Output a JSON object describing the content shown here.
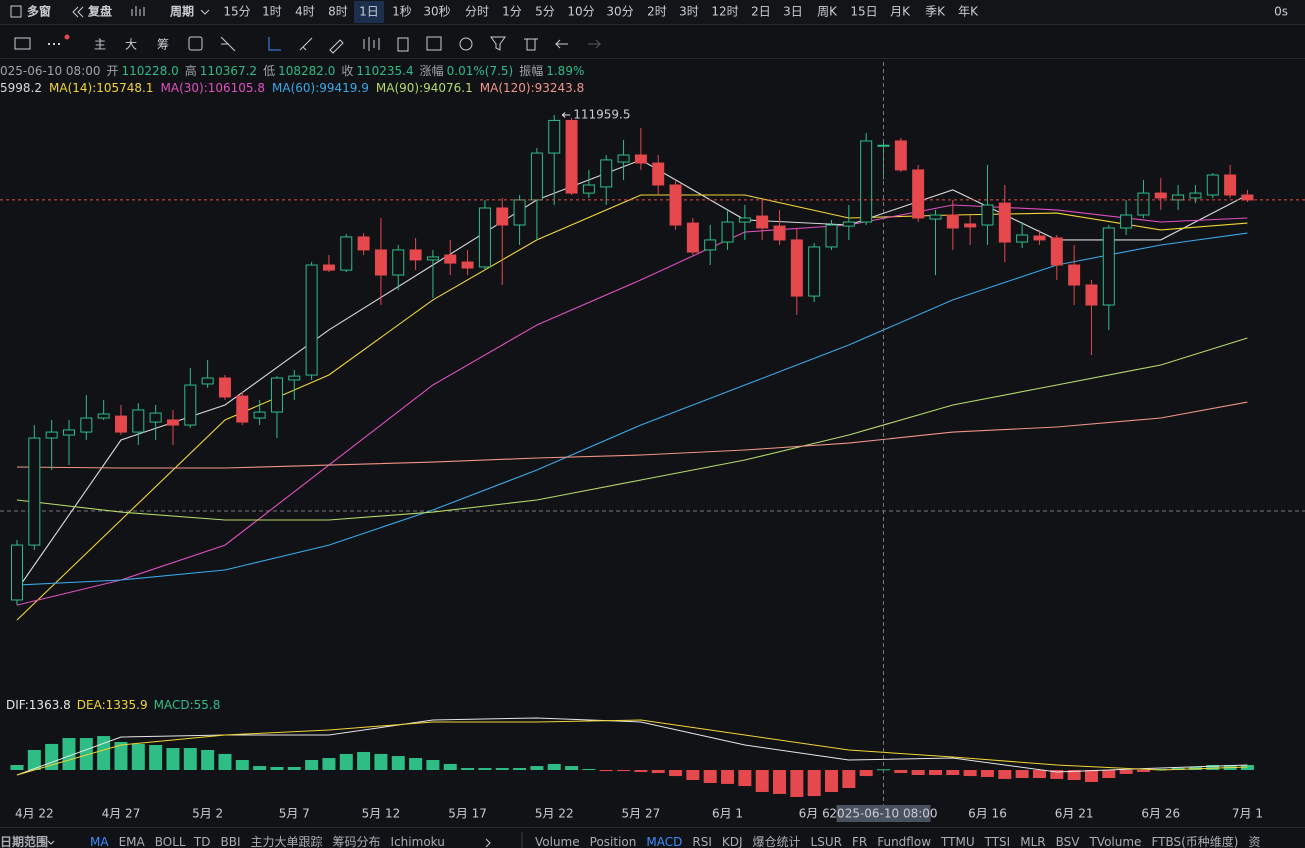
{
  "toolbar": {
    "left": [
      "多窗",
      "复盘",
      "周期"
    ],
    "periods": [
      "15分",
      "1时",
      "4时",
      "8时",
      "1日",
      "1秒",
      "30秒",
      "分时",
      "1分",
      "5分",
      "10分",
      "30分",
      "2时",
      "3时",
      "12时",
      "2日",
      "3日",
      "周K",
      "15日",
      "月K",
      "季K",
      "年K"
    ],
    "active": 4,
    "timer": "0s"
  },
  "drawing_tools": {
    "labels": [
      "主",
      "大",
      "筹"
    ]
  },
  "info": {
    "date": "025-06-10 08:00",
    "fields": [
      {
        "k": "开",
        "v": "110228.0"
      },
      {
        "k": "高",
        "v": "110367.2"
      },
      {
        "k": "低",
        "v": "108282.0"
      },
      {
        "k": "收",
        "v": "110235.4"
      },
      {
        "k": "涨幅",
        "v": "0.01%(7.5)"
      },
      {
        "k": "振幅",
        "v": "1.89%"
      }
    ]
  },
  "chart_data": {
    "type": "candlestick",
    "categories": [
      null,
      "4月 22",
      null,
      null,
      null,
      null,
      "4月 27",
      null,
      null,
      null,
      null,
      "5月 2",
      null,
      null,
      null,
      null,
      "5月 7",
      null,
      null,
      null,
      null,
      "5月 12",
      null,
      null,
      null,
      null,
      "5月 17",
      null,
      null,
      null,
      null,
      "5月 22",
      null,
      null,
      null,
      null,
      "5月 27",
      null,
      null,
      null,
      null,
      "6月 1",
      null,
      null,
      null,
      null,
      "6月 6",
      null,
      null,
      null,
      null,
      null,
      null,
      null,
      null,
      null,
      "6月 16",
      null,
      null,
      null,
      null,
      "6月 21",
      null,
      null,
      null,
      null,
      "6月 26",
      null,
      null,
      null,
      null,
      "7月 1"
    ],
    "candles": [
      [
        84320,
        87740,
        84030,
        87450
      ],
      [
        87450,
        94290,
        87170,
        93550
      ],
      [
        93550,
        94580,
        91730,
        93890
      ],
      [
        93720,
        94580,
        92010,
        94010
      ],
      [
        93890,
        96000,
        93440,
        94690
      ],
      [
        94690,
        95720,
        94580,
        94920
      ],
      [
        94800,
        95430,
        93720,
        93890
      ],
      [
        93890,
        95540,
        93150,
        95150
      ],
      [
        94460,
        95430,
        93440,
        94970
      ],
      [
        94580,
        95150,
        93150,
        94290
      ],
      [
        94290,
        97540,
        94120,
        96570
      ],
      [
        96630,
        98000,
        96400,
        96970
      ],
      [
        96970,
        97140,
        95720,
        95890
      ],
      [
        95940,
        96170,
        94290,
        94460
      ],
      [
        94690,
        95720,
        94290,
        95030
      ],
      [
        95030,
        97080,
        93550,
        96970
      ],
      [
        96860,
        97430,
        95720,
        97080
      ],
      [
        97140,
        103580,
        96860,
        103410
      ],
      [
        103410,
        103980,
        103010,
        103120
      ],
      [
        103120,
        105180,
        103010,
        105010
      ],
      [
        105010,
        105230,
        103980,
        104270
      ],
      [
        104270,
        106090,
        101130,
        102840
      ],
      [
        102840,
        104550,
        101990,
        104270
      ],
      [
        104270,
        104950,
        103120,
        103700
      ],
      [
        103700,
        104270,
        101530,
        103870
      ],
      [
        103980,
        104840,
        102840,
        103520
      ],
      [
        103580,
        104270,
        102840,
        103240
      ],
      [
        103300,
        107120,
        103120,
        106660
      ],
      [
        106660,
        107230,
        102270,
        105690
      ],
      [
        105690,
        107400,
        104550,
        107120
      ],
      [
        107120,
        110080,
        104840,
        109790
      ],
      [
        109790,
        111959.5,
        106830,
        111650
      ],
      [
        111650,
        111800,
        107400,
        107510
      ],
      [
        107510,
        108830,
        107230,
        107970
      ],
      [
        107860,
        109680,
        106830,
        109400
      ],
      [
        109280,
        110540,
        108260,
        109680
      ],
      [
        109680,
        111220,
        108830,
        109220
      ],
      [
        109220,
        109680,
        107400,
        107970
      ],
      [
        107970,
        108260,
        105410,
        105690
      ],
      [
        105800,
        106090,
        103980,
        104150
      ],
      [
        104270,
        105690,
        103410,
        104840
      ],
      [
        104720,
        106550,
        104270,
        105860
      ],
      [
        105860,
        106830,
        104840,
        106090
      ],
      [
        106200,
        107120,
        104840,
        105520
      ],
      [
        105630,
        106550,
        104550,
        104840
      ],
      [
        104840,
        105520,
        100560,
        101640
      ],
      [
        101640,
        104660,
        101300,
        104440
      ],
      [
        104440,
        105980,
        104270,
        105690
      ],
      [
        105630,
        106830,
        104840,
        105860
      ],
      [
        105860,
        110930,
        105690,
        110480
      ],
      [
        110228,
        110367.2,
        108282,
        110235.4
      ],
      [
        110480,
        110650,
        108710,
        108830
      ],
      [
        108830,
        109110,
        105860,
        106090
      ],
      [
        106030,
        106550,
        102840,
        106260
      ],
      [
        106260,
        107120,
        104270,
        105520
      ],
      [
        105750,
        106260,
        104550,
        105580
      ],
      [
        105690,
        109110,
        104550,
        106830
      ],
      [
        106940,
        107970,
        103580,
        104720
      ],
      [
        104720,
        105860,
        104380,
        105120
      ],
      [
        105060,
        105410,
        104550,
        104840
      ],
      [
        104950,
        105120,
        102560,
        103410
      ],
      [
        103410,
        104550,
        101130,
        102270
      ],
      [
        102270,
        102560,
        98280,
        101130
      ],
      [
        101130,
        105690,
        99710,
        105520
      ],
      [
        105520,
        107120,
        105120,
        106260
      ],
      [
        106260,
        108260,
        106090,
        107510
      ],
      [
        107510,
        108370,
        106550,
        107230
      ],
      [
        107120,
        107970,
        106550,
        107400
      ],
      [
        107230,
        107970,
        106940,
        107510
      ],
      [
        107400,
        108650,
        107230,
        108540
      ],
      [
        108540,
        109110,
        107230,
        107400
      ],
      [
        107400,
        107690,
        107000,
        107120
      ]
    ],
    "up_color": "#2ebd85",
    "down_color": "#e5484d",
    "ylim": [
      79190,
      114980
    ],
    "ma_x": [
      0,
      6,
      12,
      18,
      24,
      30,
      36,
      42,
      48,
      54,
      60,
      66,
      71
    ],
    "ma_series": [
      {
        "legend": "5998.2",
        "color": "#d9d9d9",
        "values": [
          84890,
          93440,
          95430,
          99710,
          103410,
          107120,
          109400,
          105980,
          105690,
          107690,
          104840,
          104840,
          107400
        ]
      },
      {
        "legend": "MA(14):105748.1",
        "color": "#f2d535",
        "values": [
          83180,
          88880,
          94580,
          97140,
          101420,
          104840,
          107400,
          107400,
          106090,
          106260,
          106370,
          105410,
          105800
        ]
      },
      {
        "legend": "MA(30):106105.8",
        "color": "#e04fc0",
        "values": [
          84030,
          85460,
          87450,
          92010,
          96570,
          99990,
          102560,
          105290,
          105690,
          106830,
          106550,
          105860,
          106090
        ]
      },
      {
        "legend": "MA(60):99419.9",
        "color": "#3aa8e8",
        "values": [
          85170,
          85460,
          86030,
          87450,
          89450,
          91730,
          94290,
          96570,
          98850,
          101420,
          103410,
          104550,
          105230
        ]
      },
      {
        "legend": "MA(90):94076.1",
        "color": "#b5d96a",
        "values": [
          90020,
          89330,
          88880,
          88880,
          89330,
          90020,
          91160,
          92300,
          93720,
          95430,
          96570,
          97710,
          99250
        ]
      },
      {
        "legend": "MA(120):93243.8",
        "color": "#f0958a",
        "values": [
          91900,
          91840,
          91840,
          92010,
          92180,
          92410,
          92580,
          92870,
          93260,
          93890,
          94180,
          94690,
          95600
        ]
      }
    ],
    "crosshair": {
      "index": 50,
      "label": "2025-06-10 08:00"
    },
    "macd": {
      "labels": [
        {
          "text": "DIF:1363.8",
          "color": "#e6e6e6"
        },
        {
          "text": "DEA:1335.9",
          "color": "#f2d535"
        },
        {
          "text": "MACD:55.8",
          "color": "#2ebd85"
        }
      ],
      "ylim": [
        -2660,
        5700
      ],
      "hist": [
        380,
        1520,
        1980,
        2430,
        2430,
        2580,
        2130,
        1980,
        1900,
        1670,
        1670,
        1520,
        1220,
        760,
        300,
        230,
        230,
        760,
        910,
        1220,
        1370,
        1220,
        1060,
        910,
        760,
        460,
        150,
        150,
        150,
        150,
        300,
        460,
        300,
        80,
        -80,
        -80,
        -150,
        -230,
        -460,
        -760,
        -990,
        -1060,
        -1220,
        -1670,
        -1820,
        -2050,
        -1980,
        -1670,
        -1370,
        -460,
        55.8,
        -230,
        -380,
        -380,
        -380,
        -460,
        -530,
        -680,
        -610,
        -610,
        -680,
        -760,
        -910,
        -610,
        -300,
        -150,
        80,
        150,
        230,
        380,
        380,
        380
      ],
      "dif": [
        -380,
        2510,
        2660,
        2660,
        3800,
        3950,
        3650,
        1900,
        760,
        910,
        -150,
        150,
        380
      ],
      "dea": [
        -380,
        1900,
        2660,
        3040,
        3650,
        3650,
        3800,
        2660,
        1520,
        990,
        380,
        0,
        230
      ],
      "dif_color": "#e6e6e6",
      "dea_color": "#f2d535"
    }
  },
  "bottom_bar": {
    "left": [
      "日期范围",
      "MA",
      "EMA",
      "BOLL",
      "TD",
      "BBI",
      "主力大单跟踪",
      "筹码分布",
      "Ichimoku"
    ],
    "right": [
      "Volume",
      "Position",
      "MACD",
      "RSI",
      "KDJ",
      "爆仓统计",
      "LSUR",
      "FR",
      "Fundflow",
      "TTMU",
      "TTSI",
      "MLR",
      "BSV",
      "TVolume",
      "FTBS(币种维度)",
      "资"
    ],
    "active_left": [
      1
    ],
    "active_right": [
      2
    ]
  }
}
